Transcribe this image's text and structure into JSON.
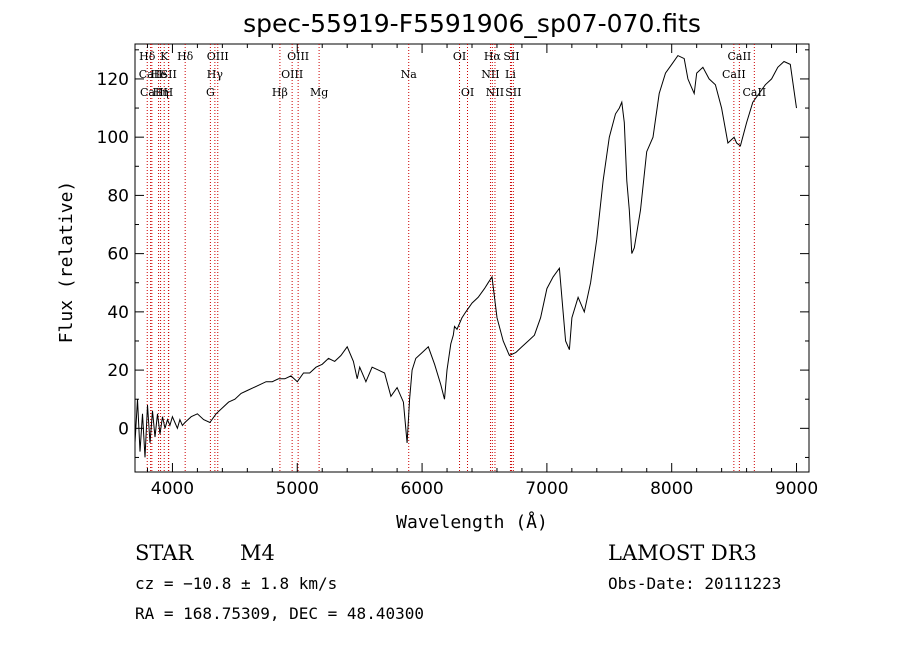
{
  "chart_data": {
    "type": "line",
    "title": "spec-55919-F5591906_sp07-070.fits",
    "xlabel": "Wavelength (Å)",
    "ylabel": "Flux (relative)",
    "xlim": [
      3700,
      9100
    ],
    "ylim": [
      -15,
      132
    ],
    "xticks": [
      4000,
      5000,
      6000,
      7000,
      8000,
      9000
    ],
    "yticks": [
      0,
      20,
      40,
      60,
      80,
      100,
      120
    ],
    "series": [
      {
        "name": "flux",
        "x": [
          3700,
          3720,
          3740,
          3760,
          3780,
          3800,
          3820,
          3840,
          3860,
          3880,
          3900,
          3920,
          3940,
          3960,
          3980,
          4000,
          4020,
          4040,
          4060,
          4080,
          4100,
          4150,
          4200,
          4250,
          4300,
          4350,
          4400,
          4450,
          4500,
          4550,
          4600,
          4650,
          4700,
          4750,
          4800,
          4850,
          4900,
          4950,
          5000,
          5050,
          5100,
          5150,
          5200,
          5250,
          5300,
          5350,
          5400,
          5450,
          5480,
          5500,
          5550,
          5600,
          5650,
          5700,
          5750,
          5800,
          5850,
          5880,
          5900,
          5920,
          5950,
          6000,
          6050,
          6100,
          6150,
          6180,
          6200,
          6230,
          6250,
          6260,
          6280,
          6300,
          6320,
          6350,
          6400,
          6450,
          6500,
          6530,
          6560,
          6580,
          6600,
          6650,
          6700,
          6750,
          6800,
          6850,
          6900,
          6950,
          7000,
          7050,
          7100,
          7130,
          7150,
          7180,
          7200,
          7250,
          7300,
          7350,
          7400,
          7450,
          7500,
          7550,
          7580,
          7600,
          7620,
          7640,
          7660,
          7680,
          7700,
          7750,
          7800,
          7850,
          7900,
          7950,
          8000,
          8050,
          8100,
          8130,
          8150,
          8180,
          8200,
          8250,
          8300,
          8350,
          8400,
          8450,
          8500,
          8520,
          8550,
          8600,
          8650,
          8700,
          8750,
          8800,
          8850,
          8900,
          8950,
          9000
        ],
        "values": [
          -5,
          10,
          -8,
          5,
          -10,
          8,
          -5,
          6,
          -3,
          5,
          -2,
          4,
          0,
          3,
          1,
          4,
          2,
          0,
          3,
          1,
          2,
          4,
          5,
          3,
          2,
          5,
          7,
          9,
          10,
          12,
          13,
          14,
          15,
          16,
          16,
          17,
          17,
          18,
          16,
          19,
          19,
          21,
          22,
          24,
          23,
          25,
          28,
          23,
          17,
          21,
          16,
          21,
          20,
          19,
          11,
          14,
          9,
          -5,
          10,
          20,
          24,
          26,
          28,
          22,
          15,
          10,
          20,
          29,
          32,
          35,
          34,
          36,
          38,
          40,
          43,
          45,
          48,
          50,
          52,
          45,
          38,
          30,
          25,
          26,
          28,
          30,
          32,
          38,
          48,
          52,
          55,
          40,
          30,
          27,
          38,
          45,
          40,
          50,
          65,
          85,
          100,
          108,
          110,
          112,
          105,
          85,
          75,
          60,
          62,
          75,
          95,
          100,
          115,
          122,
          125,
          128,
          127,
          120,
          118,
          115,
          122,
          124,
          120,
          118,
          110,
          98,
          100,
          98,
          97,
          105,
          112,
          115,
          118,
          120,
          124,
          126,
          125,
          110
        ]
      }
    ],
    "lines": [
      {
        "name": "Hδ",
        "x": 3798,
        "row": 0
      },
      {
        "name": "CaII",
        "x": 3825,
        "row": 1
      },
      {
        "name": "CaII",
        "x": 3835,
        "row": 2
      },
      {
        "name": "He",
        "x": 3889,
        "row": 1
      },
      {
        "name": "Hη",
        "x": 3905,
        "row": 2
      },
      {
        "name": "K",
        "x": 3934,
        "row": 0
      },
      {
        "name": "SII",
        "x": 3970,
        "row": 1
      },
      {
        "name": "H",
        "x": 3968,
        "row": 2
      },
      {
        "name": "Hδ",
        "x": 4102,
        "row": 0
      },
      {
        "name": "OIII",
        "x": 4363,
        "row": 0
      },
      {
        "name": "Hγ",
        "x": 4340,
        "row": 1
      },
      {
        "name": "G",
        "x": 4304,
        "row": 2
      },
      {
        "name": "OIII",
        "x": 5007,
        "row": 0
      },
      {
        "name": "OIII",
        "x": 4959,
        "row": 1
      },
      {
        "name": "Hβ",
        "x": 4861,
        "row": 2
      },
      {
        "name": "Mg",
        "x": 5175,
        "row": 2
      },
      {
        "name": "Na",
        "x": 5893,
        "row": 1
      },
      {
        "name": "OI",
        "x": 6300,
        "row": 0
      },
      {
        "name": "OI",
        "x": 6364,
        "row": 2
      },
      {
        "name": "Hα",
        "x": 6563,
        "row": 0
      },
      {
        "name": "SII",
        "x": 6716,
        "row": 0
      },
      {
        "name": "NII",
        "x": 6548,
        "row": 1
      },
      {
        "name": "Li",
        "x": 6708,
        "row": 1
      },
      {
        "name": "NII",
        "x": 6584,
        "row": 2
      },
      {
        "name": "SII",
        "x": 6731,
        "row": 2
      },
      {
        "name": "CaII",
        "x": 8542,
        "row": 0
      },
      {
        "name": "CaII",
        "x": 8498,
        "row": 1
      },
      {
        "name": "CaII",
        "x": 8662,
        "row": 2
      }
    ]
  },
  "info": {
    "object_class": "STAR",
    "subclass": "M4",
    "survey": "LAMOST DR3",
    "cz": "cz = −10.8 ± 1.8 km/s",
    "obs_date": "Obs-Date: 20111223",
    "radec": "RA = 168.75309, DEC =  48.40300"
  },
  "colors": {
    "line_marker": "#cc0000",
    "spectrum": "#000000"
  }
}
